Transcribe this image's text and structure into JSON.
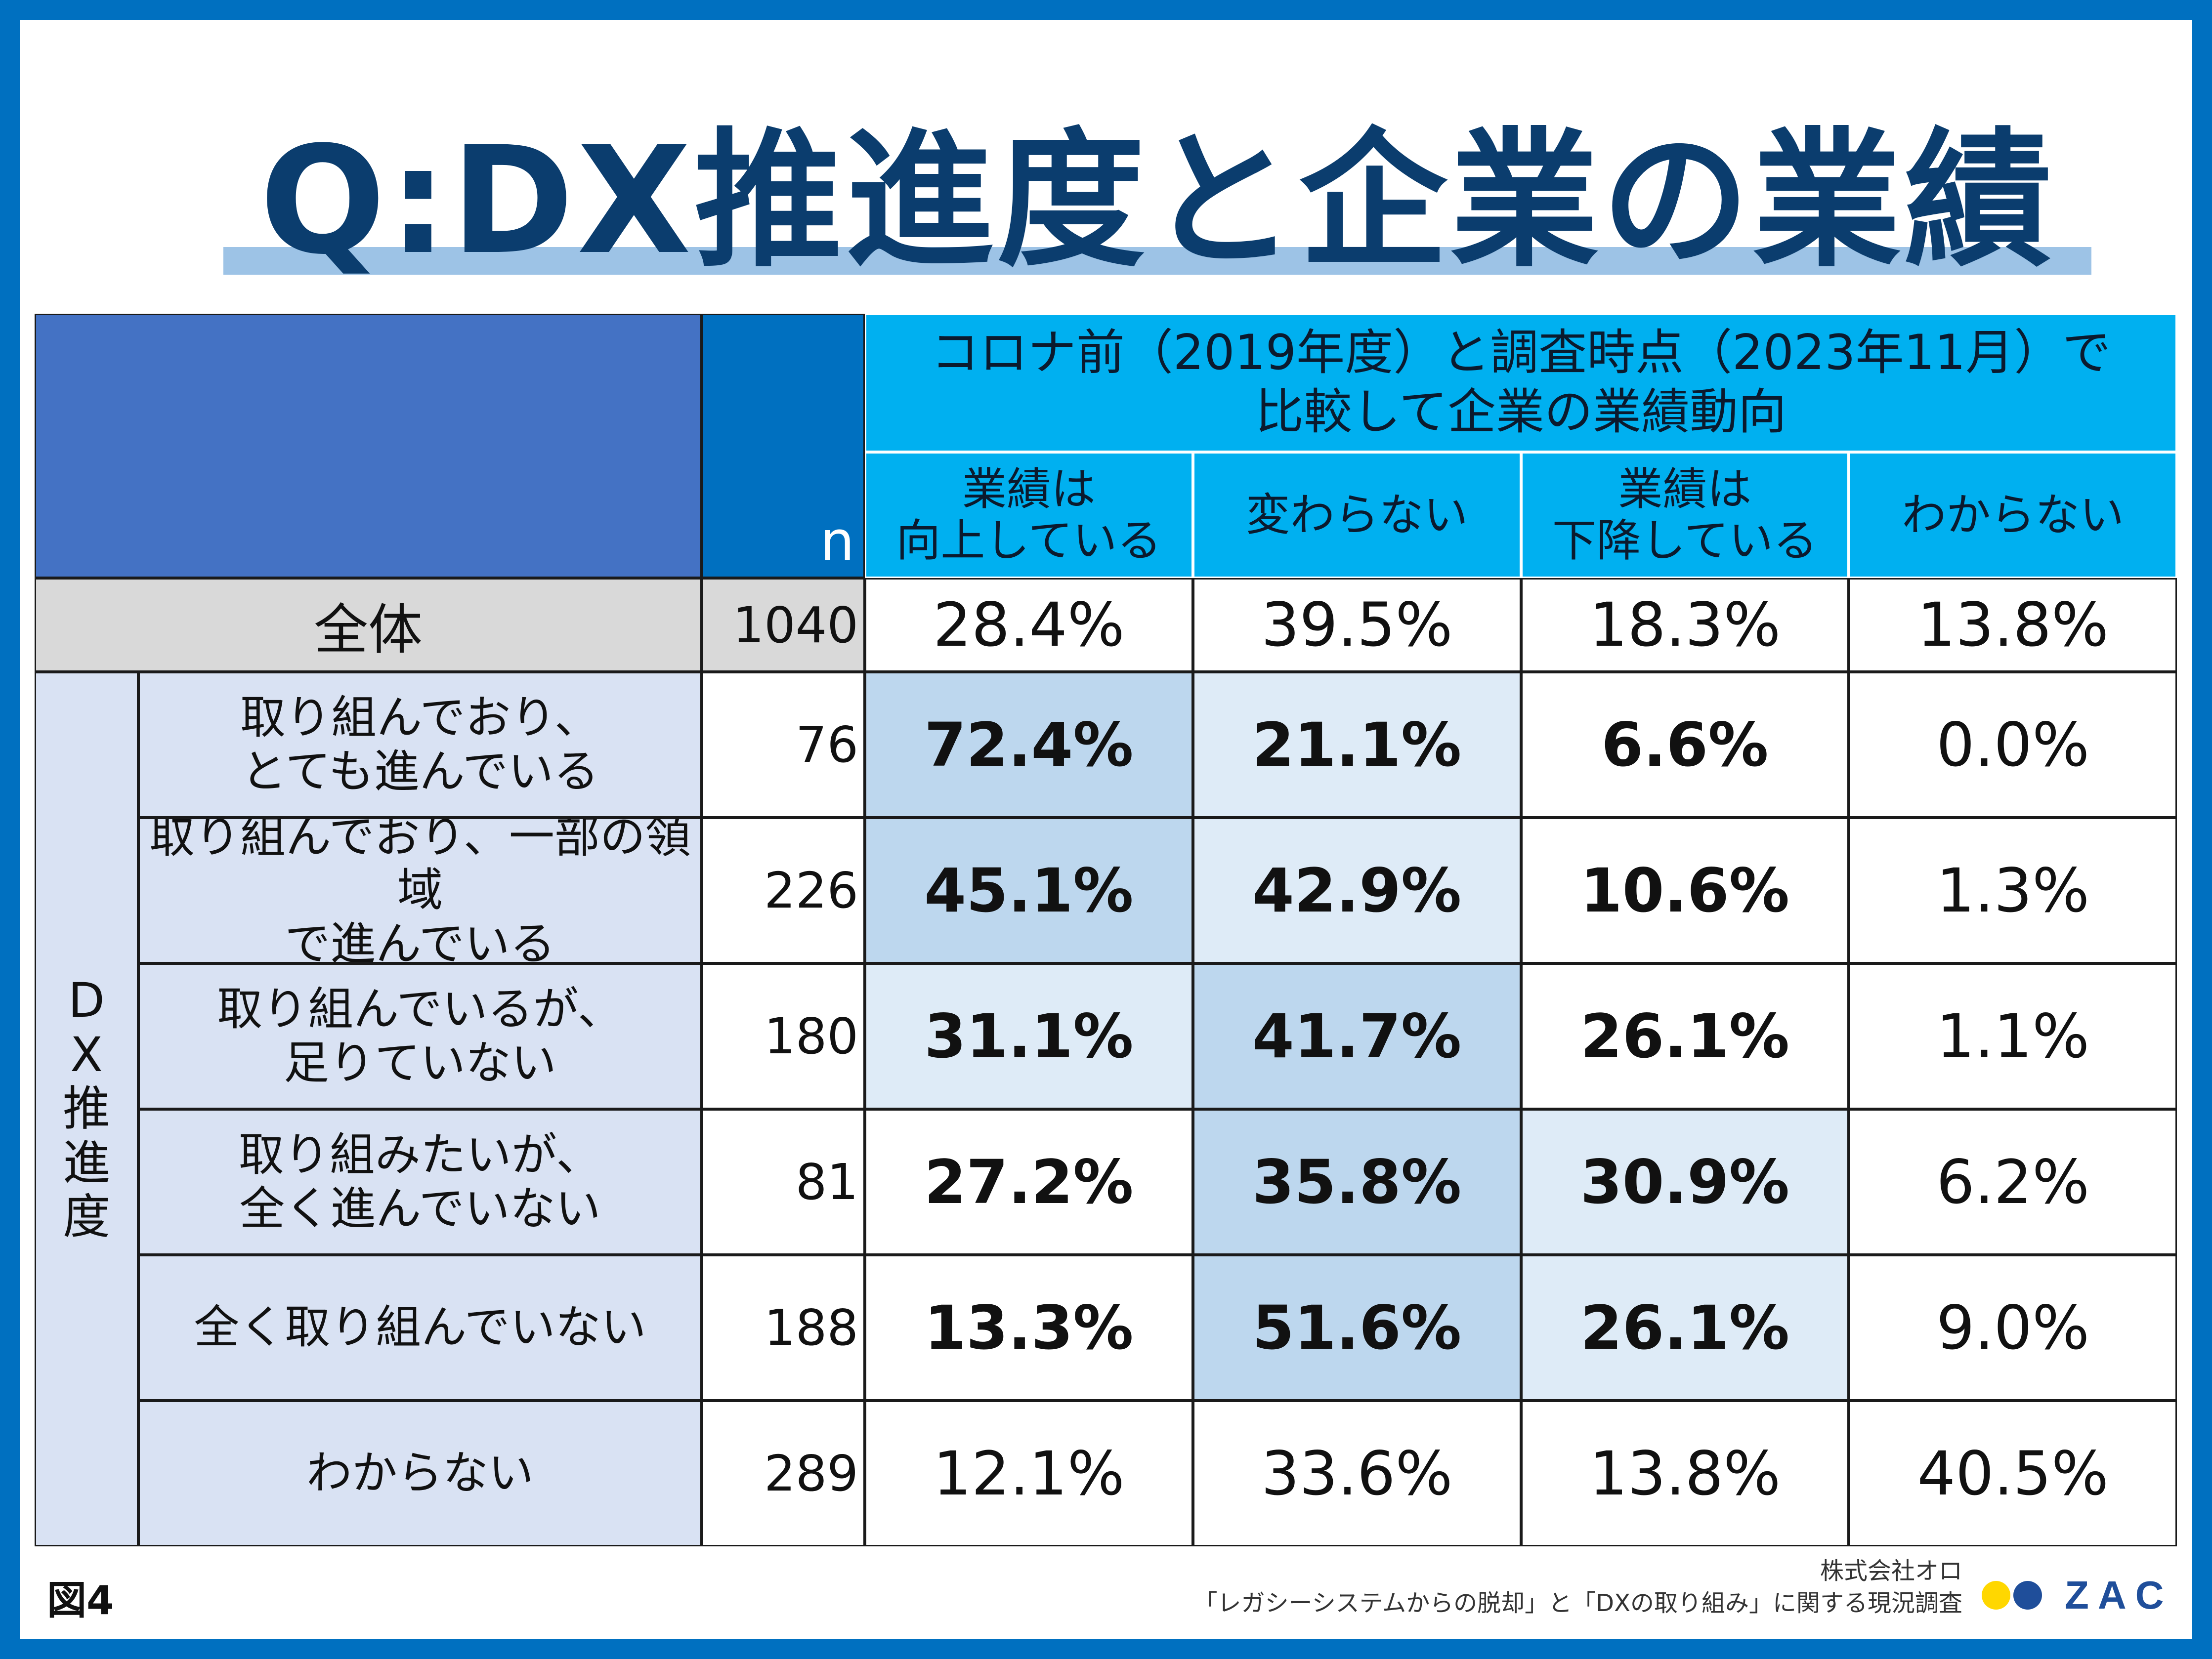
{
  "title": "Q:DX推進度と企業の業績",
  "figure_label": "図4",
  "source": {
    "company": "株式会社オロ",
    "survey": "「レガシーシステムからの脱却」と「DXの取り組み」に関する現況調査"
  },
  "logo": {
    "text": "ZAC",
    "dot_colors": [
      "#ffd700",
      "#1f4e9a"
    ]
  },
  "colors": {
    "frame": "#0070c0",
    "header_dark": "#4472c4",
    "header_n": "#0070c0",
    "header_main": "#00b0f0",
    "shade_dark": "#bdd7ee",
    "shade_light": "#deebf7",
    "total_row": "#d9d9d9",
    "row_label": "#d9e2f3"
  },
  "chart_data": {
    "type": "table",
    "n_header": "n",
    "group_header_line1": "コロナ前（2019年度）と調査時点（2023年11月）で",
    "group_header_line2": "比較して企業の業績動向",
    "columns": [
      {
        "line1": "業績は",
        "line2": "向上している"
      },
      {
        "line1": "変わらない",
        "line2": ""
      },
      {
        "line1": "業績は",
        "line2": "下降している"
      },
      {
        "line1": "わからない",
        "line2": ""
      }
    ],
    "total": {
      "label": "全体",
      "n": "1040",
      "values": [
        "28.4%",
        "39.5%",
        "18.3%",
        "13.8%"
      ]
    },
    "group_label_chars": [
      "D",
      "X",
      "推",
      "進",
      "度"
    ],
    "rows": [
      {
        "line1": "取り組んでおり、",
        "line2": "とても進んでいる",
        "n": "76",
        "values": [
          "72.4%",
          "21.1%",
          "6.6%",
          "0.0%"
        ],
        "shading": [
          "dark",
          "light",
          "none",
          "none"
        ],
        "bold": [
          true,
          true,
          true,
          false
        ]
      },
      {
        "line1": "取り組んでおり、一部の領域",
        "line2": "で進んでいる",
        "n": "226",
        "values": [
          "45.1%",
          "42.9%",
          "10.6%",
          "1.3%"
        ],
        "shading": [
          "dark",
          "light",
          "none",
          "none"
        ],
        "bold": [
          true,
          true,
          true,
          false
        ]
      },
      {
        "line1": "取り組んでいるが、",
        "line2": "足りていない",
        "n": "180",
        "values": [
          "31.1%",
          "41.7%",
          "26.1%",
          "1.1%"
        ],
        "shading": [
          "light",
          "dark",
          "none",
          "none"
        ],
        "bold": [
          true,
          true,
          true,
          false
        ]
      },
      {
        "line1": "取り組みたいが、",
        "line2": "全く進んでいない",
        "n": "81",
        "values": [
          "27.2%",
          "35.8%",
          "30.9%",
          "6.2%"
        ],
        "shading": [
          "none",
          "dark",
          "light",
          "none"
        ],
        "bold": [
          true,
          true,
          true,
          false
        ]
      },
      {
        "line1": "全く取り組んでいない",
        "line2": "",
        "n": "188",
        "values": [
          "13.3%",
          "51.6%",
          "26.1%",
          "9.0%"
        ],
        "shading": [
          "none",
          "dark",
          "light",
          "none"
        ],
        "bold": [
          true,
          true,
          true,
          false
        ]
      },
      {
        "line1": "わからない",
        "line2": "",
        "n": "289",
        "values": [
          "12.1%",
          "33.6%",
          "13.8%",
          "40.5%"
        ],
        "shading": [
          "none",
          "none",
          "none",
          "none"
        ],
        "bold": [
          false,
          false,
          false,
          false
        ]
      }
    ]
  }
}
